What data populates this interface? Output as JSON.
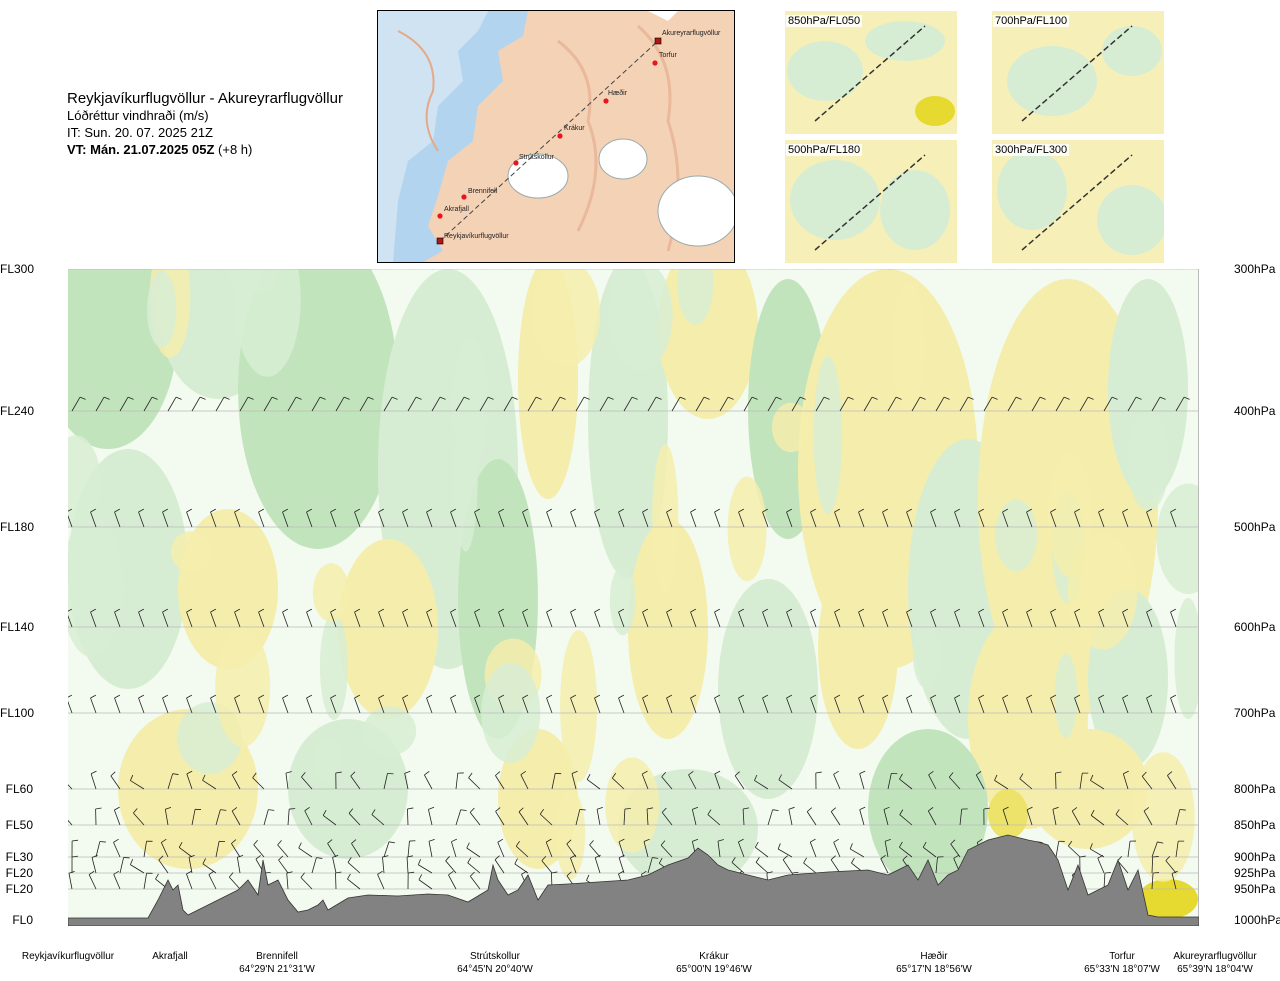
{
  "title": {
    "route": "Reykjavíkurflugvöllur - Akureyrarflugvöllur",
    "subtitle": "Lóðréttur vindhraði (m/s)",
    "it": "IT: Sun. 20. 07. 2025 21Z",
    "vt_bold": "VT: Mán. 21.07.2025 05Z",
    "vt_rest": "(+8 h)"
  },
  "route_map": {
    "points": [
      {
        "name": "Akureyrarflugvöllur",
        "kind": "airport"
      },
      {
        "name": "Torfur",
        "kind": "waypoint"
      },
      {
        "name": "Hæðir",
        "kind": "waypoint"
      },
      {
        "name": "Krákur",
        "kind": "waypoint"
      },
      {
        "name": "Strútskollur",
        "kind": "waypoint"
      },
      {
        "name": "Brennifell",
        "kind": "waypoint"
      },
      {
        "name": "Akrafjall",
        "kind": "waypoint"
      },
      {
        "name": "Reykjavíkurflugvöllur",
        "kind": "airport"
      }
    ]
  },
  "mini_maps": [
    {
      "label": "850hPa/FL050"
    },
    {
      "label": "700hPa/FL100"
    },
    {
      "label": "500hPa/FL180"
    },
    {
      "label": "300hPa/FL300"
    }
  ],
  "colors": {
    "sink_weak": "#f5edab",
    "sink_mod": "#ede36a",
    "sink_strong": "#e6d930",
    "lift_weak": "#d7edd3",
    "lift_mod": "#c2e4bd",
    "neutral": "#f3faef",
    "terrain": "#828282",
    "route_dot": "#e8141e"
  },
  "chart_data": {
    "type": "heatmap",
    "variable": "Lóðréttur vindhraði (m/s)",
    "levels": [
      {
        "fl": "FL300",
        "hpa": "300hPa"
      },
      {
        "fl": "FL240",
        "hpa": "400hPa"
      },
      {
        "fl": "FL180",
        "hpa": "500hPa"
      },
      {
        "fl": "FL140",
        "hpa": "600hPa"
      },
      {
        "fl": "FL100",
        "hpa": "700hPa"
      },
      {
        "fl": "FL60",
        "hpa": "800hPa"
      },
      {
        "fl": "FL50",
        "hpa": "850hPa"
      },
      {
        "fl": "FL30",
        "hpa": "900hPa"
      },
      {
        "fl": "FL20",
        "hpa": "925hPa"
      },
      {
        "fl": "FL20",
        "hpa": "950hPa"
      },
      {
        "fl": "FL0",
        "hpa": "1000hPa"
      }
    ],
    "waypoints": [
      {
        "name": "Reykjavíkurflugvöllur",
        "coord": ""
      },
      {
        "name": "Akrafjall",
        "coord": ""
      },
      {
        "name": "Brennifell",
        "coord": "64°29'N 21°31'W"
      },
      {
        "name": "Strútskollur",
        "coord": "64°45'N 20°40'W"
      },
      {
        "name": "Krákur",
        "coord": "65°00'N 19°46'W"
      },
      {
        "name": "Hæðir",
        "coord": "65°17'N 18°56'W"
      },
      {
        "name": "Torfur",
        "coord": "65°33'N 18°07'W"
      },
      {
        "name": "Akureyrarflugvöllur",
        "coord": "65°39'N 18°04'W"
      }
    ],
    "grid": true
  }
}
